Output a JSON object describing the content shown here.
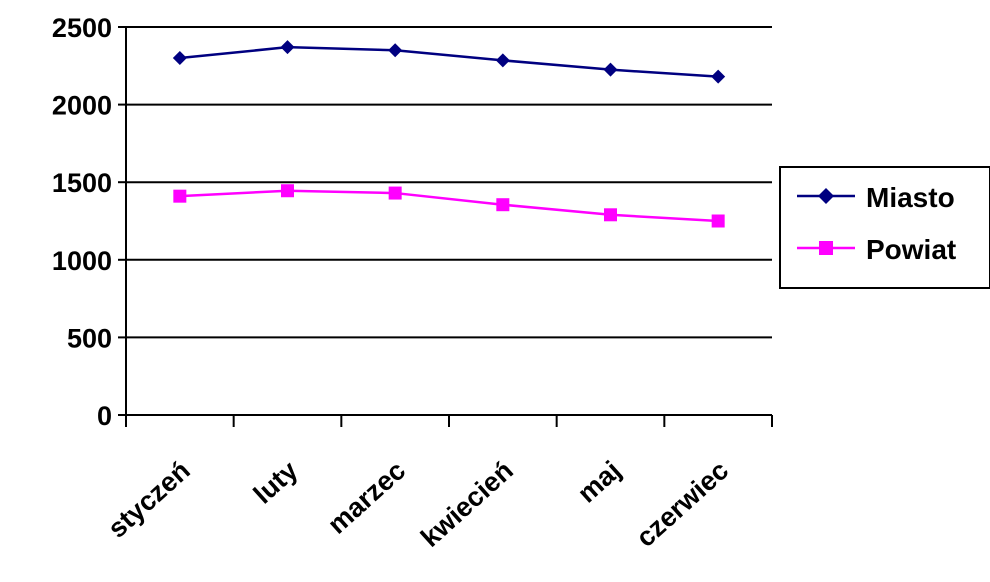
{
  "chart_data": {
    "type": "line",
    "categories": [
      "styczeń",
      "luty",
      "marzec",
      "kwiecień",
      "maj",
      "czerwiec"
    ],
    "series": [
      {
        "name": "Miasto",
        "values": [
          2300,
          2370,
          2350,
          2285,
          2225,
          2180
        ],
        "color": "#000080",
        "marker": "diamond"
      },
      {
        "name": "Powiat",
        "values": [
          1410,
          1445,
          1430,
          1355,
          1290,
          1250
        ],
        "color": "#FF00FF",
        "marker": "square"
      }
    ],
    "yticks": [
      "0",
      "500",
      "1000",
      "1500",
      "2000",
      "2500"
    ],
    "ylim": [
      0,
      2500
    ],
    "grid": "horizontal",
    "legend": "right"
  }
}
